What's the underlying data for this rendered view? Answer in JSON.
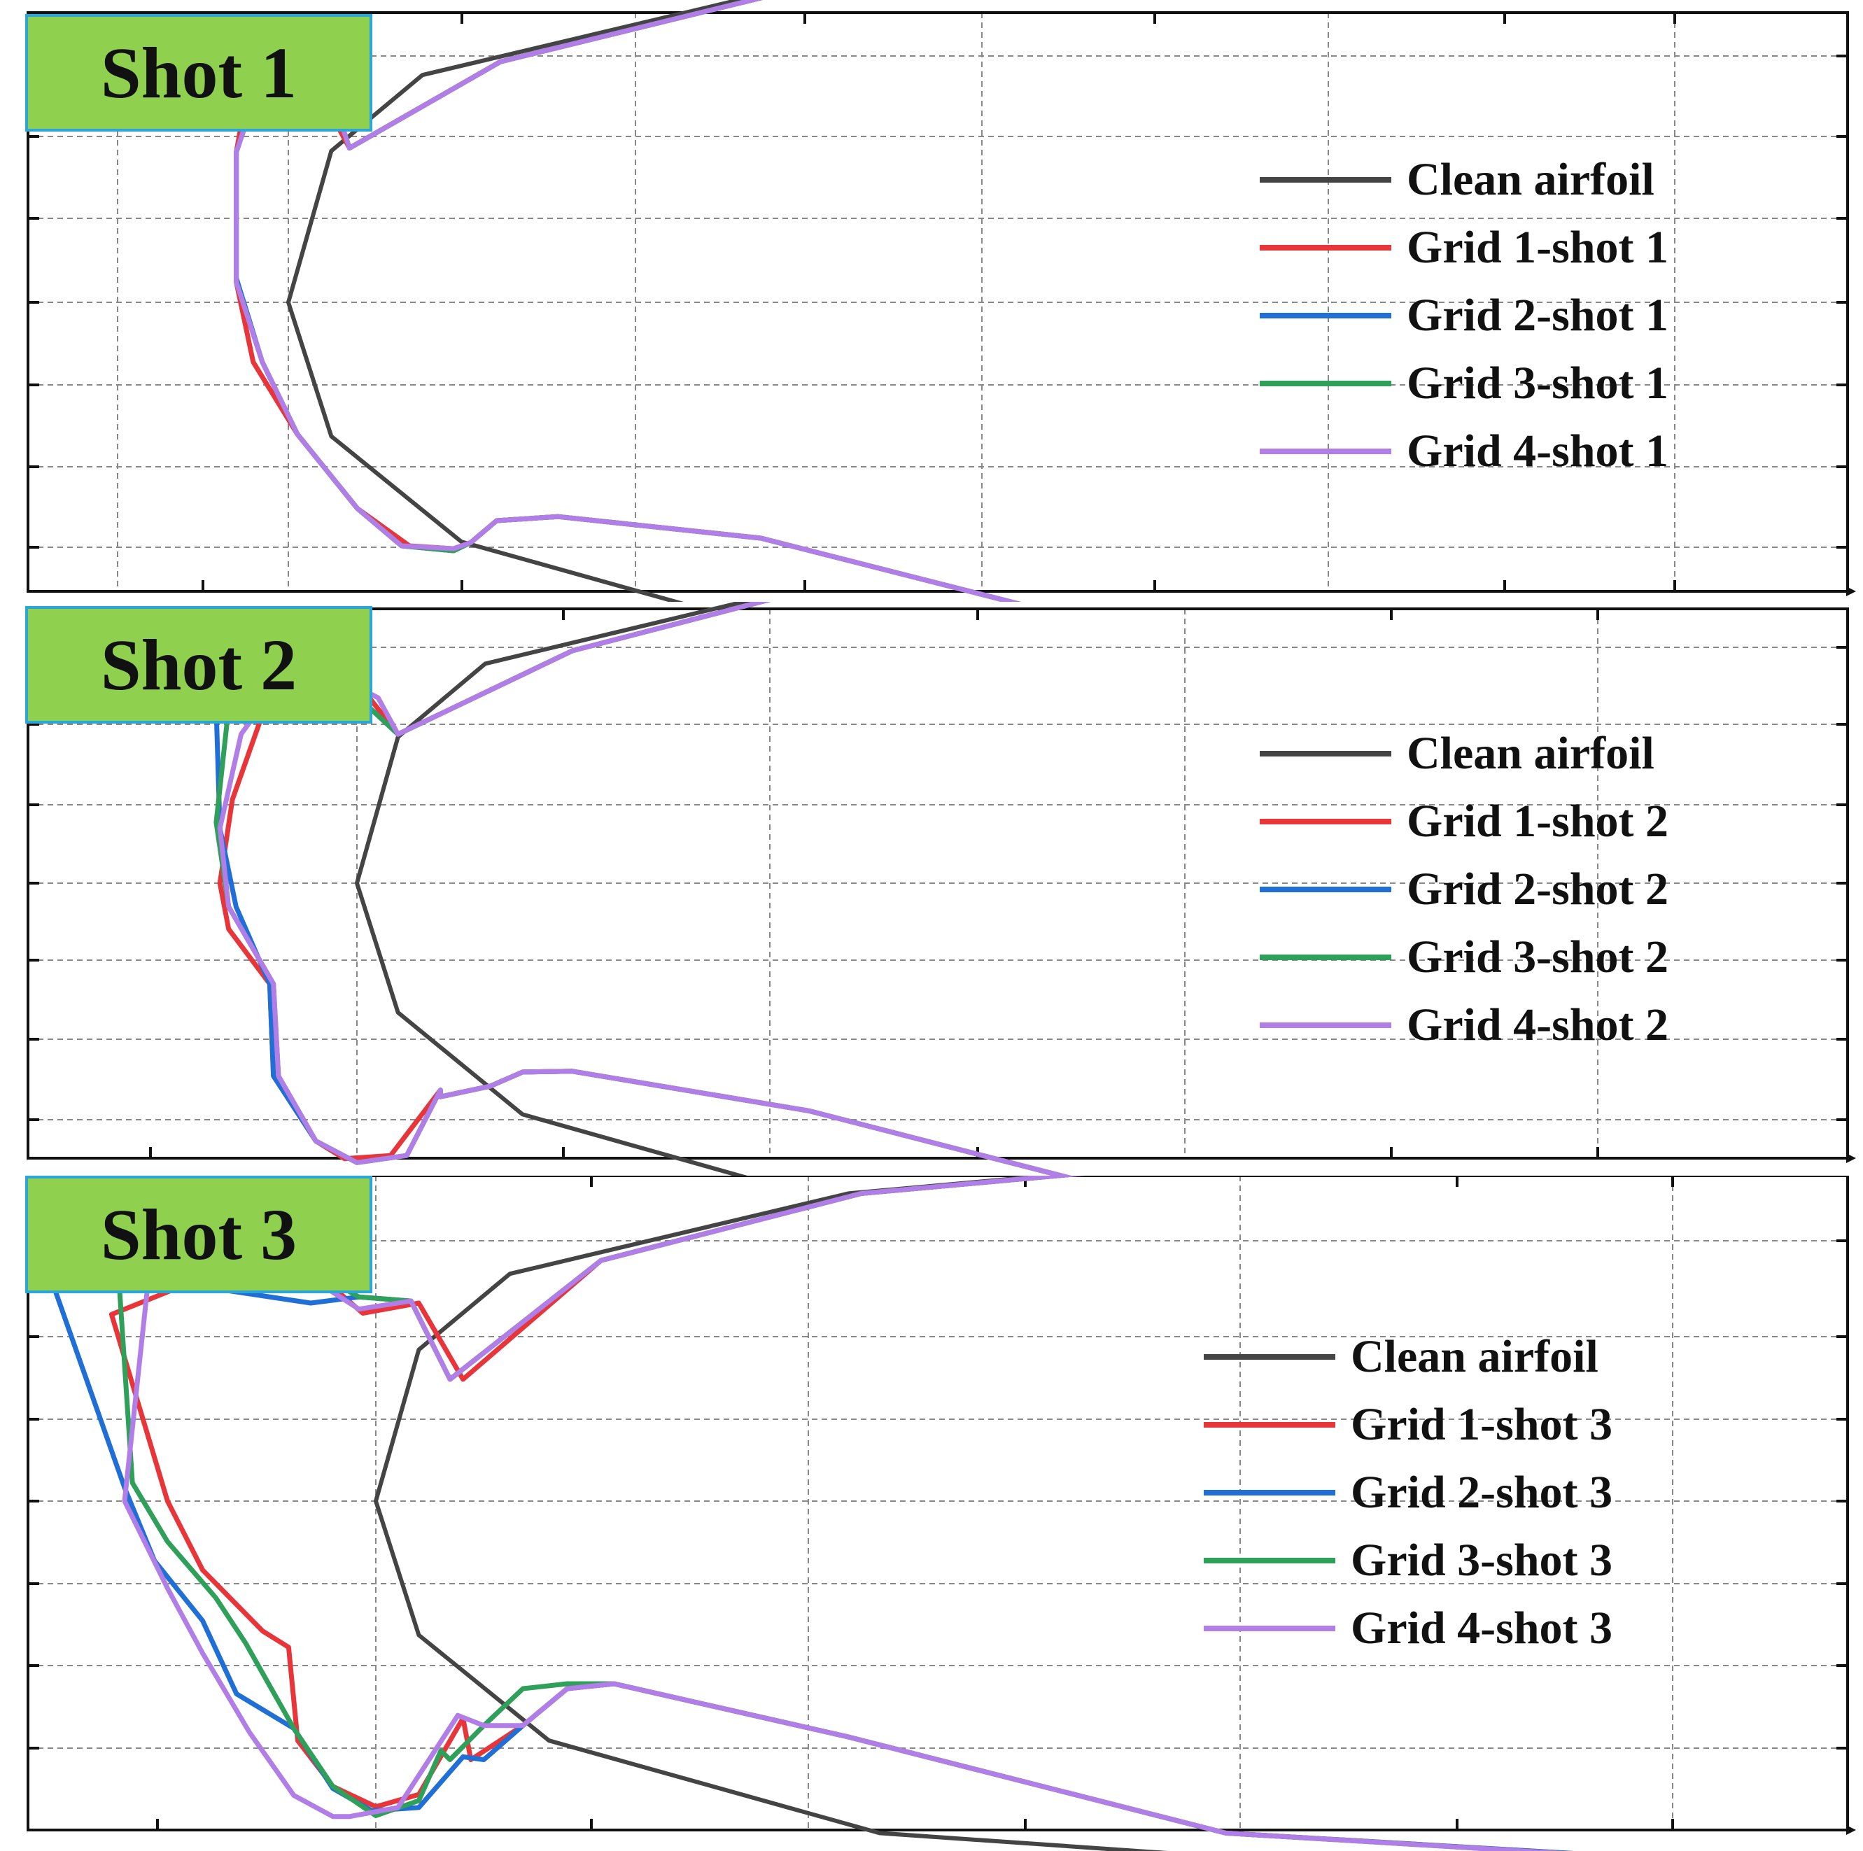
{
  "colors": {
    "clean": "#444444",
    "grid1": "#e8353a",
    "grid2": "#1f6fd6",
    "grid3": "#2fa05a",
    "grid4": "#b07ee6",
    "grid_lines": "#888888",
    "label_bg": "#8fd14f",
    "label_border": "#2aa7d8"
  },
  "chart_data": [
    {
      "type": "line",
      "title": "Shot 1",
      "grid": true,
      "legend": "right",
      "series": [
        {
          "name": "Clean airfoil",
          "color": "#444444",
          "x": [
            98.0,
            66.7,
            36.3,
            10.3,
            3.3,
            0,
            3.3,
            13.3,
            38.7,
            68.8,
            100.0
          ],
          "y": [
            8.58,
            8.45,
            7.58,
            5.6,
            3.73,
            0,
            -3.3,
            -5.9,
            -8.18,
            -8.85,
            -8.88
          ]
        },
        {
          "name": "Grid 1-shot 1",
          "color": "#e8353a",
          "x": [
            101.0,
            67.3,
            37.3,
            16.3,
            4.7,
            2.7,
            -0.7,
            -3.3,
            -4.0,
            -4.0,
            -2.7,
            0.7,
            5.3,
            9.3,
            12.7,
            14.0,
            16.0,
            20.7,
            36.3,
            65.3,
            98.0,
            101.0
          ],
          "y": [
            8.58,
            8.45,
            7.58,
            5.93,
            3.8,
            4.98,
            5.28,
            4.93,
            3.7,
            0.5,
            -1.47,
            -3.25,
            -5.08,
            -6.0,
            -6.07,
            -5.92,
            -5.38,
            -5.28,
            -5.81,
            -8.18,
            -8.85,
            -8.88
          ]
        },
        {
          "name": "Grid 2-shot 1",
          "color": "#1f6fd6",
          "x": [
            100.0,
            67.3,
            37.3,
            16.3,
            4.7,
            3.3,
            0,
            -2.7,
            -4.0,
            -4.0,
            -2.0,
            0.7,
            5.3,
            8.7,
            12.7,
            14.0,
            16.0,
            20.7,
            36.3,
            65.3,
            98.0,
            101.0
          ],
          "y": [
            8.58,
            8.45,
            7.58,
            5.93,
            3.8,
            5.13,
            5.2,
            4.93,
            3.7,
            0.6,
            -1.47,
            -3.25,
            -5.08,
            -6.0,
            -6.12,
            -5.92,
            -5.38,
            -5.28,
            -5.81,
            -8.18,
            -8.85,
            -8.88
          ]
        },
        {
          "name": "Grid 3-shot 1",
          "color": "#2fa05a",
          "x": [
            100.0,
            67.3,
            37.3,
            16.3,
            4.7,
            3.3,
            0,
            -2.7,
            -4.0,
            -4.0,
            -2.0,
            0.7,
            5.3,
            8.7,
            12.7,
            14.0,
            16.0,
            20.7,
            36.3,
            65.3,
            98.0,
            100.0
          ],
          "y": [
            8.58,
            8.45,
            7.58,
            5.93,
            3.8,
            5.13,
            5.2,
            4.93,
            3.7,
            0.5,
            -1.47,
            -3.25,
            -5.08,
            -6.0,
            -6.12,
            -5.92,
            -5.38,
            -5.28,
            -5.81,
            -8.18,
            -8.85,
            -8.88
          ]
        },
        {
          "name": "Grid 4-shot 1",
          "color": "#b07ee6",
          "x": [
            100.0,
            67.3,
            37.3,
            16.3,
            4.7,
            3.3,
            0,
            -2.7,
            -4.0,
            -4.0,
            -2.0,
            0.7,
            5.3,
            8.7,
            12.7,
            14.0,
            16.0,
            20.7,
            36.3,
            65.3,
            98.0
          ],
          "y": [
            8.58,
            8.45,
            7.58,
            5.93,
            3.8,
            5.13,
            5.2,
            4.93,
            3.7,
            0.5,
            -1.47,
            -3.25,
            -5.08,
            -6.0,
            -6.07,
            -5.92,
            -5.38,
            -5.28,
            -5.81,
            -8.18,
            -8.85
          ]
        }
      ]
    },
    {
      "type": "line",
      "title": "Shot 2",
      "grid": true,
      "legend": "right",
      "series": [
        {
          "name": "Clean airfoil",
          "color": "#444444",
          "x": [
            98.0,
            66.7,
            36.3,
            10.3,
            3.3,
            0,
            3.3,
            13.3,
            38.7,
            68.8,
            100.0
          ],
          "y": [
            8.58,
            8.45,
            7.58,
            5.6,
            3.73,
            0,
            -3.3,
            -5.9,
            -8.18,
            -8.85,
            -8.88
          ]
        },
        {
          "name": "Grid 1-shot 2",
          "color": "#e8353a",
          "x": [
            100.0,
            67.3,
            37.3,
            17.3,
            3.3,
            1.0,
            -3.3,
            -7.7,
            -10.0,
            -11.0,
            -10.3,
            -7.0,
            -6.7,
            -3.3,
            -1.0,
            2.7,
            6.7,
            6.7,
            10.7,
            13.3,
            17.3,
            36.3,
            65.3,
            98.0,
            101.0
          ],
          "y": [
            8.58,
            8.45,
            7.58,
            5.93,
            3.8,
            4.73,
            5.18,
            4.2,
            2.13,
            0,
            -1.17,
            -2.57,
            -4.92,
            -6.58,
            -7.03,
            -6.95,
            -5.28,
            -5.45,
            -5.18,
            -4.82,
            -4.8,
            -5.81,
            -8.18,
            -8.85,
            -8.88
          ]
        },
        {
          "name": "Grid 2-shot 2",
          "color": "#1f6fd6",
          "x": [
            102.0,
            67.3,
            37.3,
            17.3,
            3.3,
            1.0,
            -3.3,
            -7.7,
            -11.3,
            -11.0,
            -9.7,
            -7.0,
            -6.7,
            -3.3,
            0,
            4.0,
            6.7,
            6.7,
            10.7,
            13.3,
            17.3,
            36.3,
            65.3,
            98.0,
            103.0
          ],
          "y": [
            8.58,
            8.45,
            7.58,
            5.93,
            3.8,
            4.48,
            4.73,
            5.0,
            4.48,
            1.4,
            -0.6,
            -2.57,
            -4.92,
            -6.58,
            -7.13,
            -6.95,
            -5.28,
            -5.45,
            -5.18,
            -4.82,
            -4.8,
            -5.81,
            -8.18,
            -8.85,
            -8.88
          ]
        },
        {
          "name": "Grid 3-shot 2",
          "color": "#2fa05a",
          "x": [
            100.0,
            67.3,
            37.3,
            17.3,
            3.3,
            1.0,
            -3.3,
            -7.7,
            -10.0,
            -11.3,
            -10.3,
            -6.7,
            -6.3,
            -3.3,
            0,
            4.0,
            6.7,
            6.7,
            10.7,
            13.3,
            17.3,
            36.3,
            65.3,
            98.0
          ],
          "y": [
            8.58,
            8.45,
            7.58,
            5.93,
            3.8,
            4.48,
            4.73,
            5.0,
            5.35,
            1.55,
            -0.6,
            -2.57,
            -4.92,
            -6.58,
            -7.13,
            -6.95,
            -5.28,
            -5.45,
            -5.18,
            -4.82,
            -4.8,
            -5.81,
            -8.18,
            -8.85
          ]
        },
        {
          "name": "Grid 4-shot 2",
          "color": "#b07ee6",
          "x": [
            100.0,
            67.3,
            37.3,
            17.3,
            3.3,
            1.7,
            -2.3,
            -6.3,
            -9.3,
            -11.0,
            -10.3,
            -6.7,
            -6.3,
            -3.3,
            0,
            4.0,
            6.7,
            6.7,
            10.7,
            13.3,
            17.3,
            36.3,
            65.3,
            98.0
          ],
          "y": [
            8.58,
            8.45,
            7.58,
            5.93,
            3.8,
            4.73,
            5.38,
            5.13,
            3.8,
            1.4,
            -0.6,
            -2.57,
            -4.92,
            -6.58,
            -7.13,
            -6.95,
            -5.28,
            -5.45,
            -5.18,
            -4.82,
            -4.8,
            -5.81,
            -8.18,
            -8.85
          ]
        }
      ]
    },
    {
      "type": "line",
      "title": "Shot 3",
      "grid": true,
      "legend": "right",
      "series": [
        {
          "name": "Clean airfoil",
          "color": "#444444",
          "x": [
            98.0,
            66.7,
            36.3,
            10.3,
            3.3,
            0,
            3.3,
            13.3,
            38.7,
            68.8,
            100.0
          ],
          "y": [
            8.58,
            8.45,
            7.58,
            5.6,
            3.73,
            0,
            -3.3,
            -5.9,
            -8.18,
            -8.85,
            -8.88
          ]
        },
        {
          "name": "Grid 1-shot 3",
          "color": "#e8353a",
          "x": [
            102.0,
            67.3,
            37.3,
            17.3,
            6.7,
            3.3,
            -1.0,
            -3.7,
            -7.0,
            -13.3,
            -20.3,
            -16.0,
            -13.3,
            -8.7,
            -6.7,
            -6.0,
            -3.3,
            0,
            3.3,
            6.7,
            7.3,
            11.3,
            14.7,
            18.3,
            36.3,
            65.3,
            101.0,
            106.0
          ],
          "y": [
            8.58,
            8.45,
            7.58,
            5.93,
            3.0,
            4.88,
            4.63,
            5.38,
            6.15,
            5.5,
            4.6,
            0,
            -1.7,
            -3.2,
            -3.6,
            -5.9,
            -7.03,
            -7.53,
            -7.23,
            -5.35,
            -6.37,
            -5.53,
            -4.62,
            -4.5,
            -5.81,
            -8.18,
            -8.85,
            -8.88
          ]
        },
        {
          "name": "Grid 2-shot 3",
          "color": "#1f6fd6",
          "x": [
            103.0,
            67.3,
            37.3,
            17.3,
            5.7,
            2.7,
            -1.3,
            -5.0,
            -12.7,
            -24.7,
            -19.3,
            -17.0,
            -13.3,
            -10.7,
            -6.3,
            -3.3,
            -0.3,
            3.3,
            6.7,
            8.3,
            11.3,
            14.7,
            18.3,
            36.3,
            65.3,
            101.0,
            108.0
          ],
          "y": [
            8.58,
            8.45,
            7.58,
            5.93,
            3.0,
            4.93,
            5.03,
            4.88,
            5.25,
            5.25,
            0.33,
            -1.47,
            -2.95,
            -4.75,
            -5.6,
            -7.08,
            -7.63,
            -7.55,
            -6.3,
            -6.37,
            -5.53,
            -4.62,
            -4.5,
            -5.81,
            -8.18,
            -8.85,
            -8.88
          ]
        },
        {
          "name": "Grid 3-shot 3",
          "color": "#2fa05a",
          "x": [
            100.0,
            67.3,
            37.3,
            17.3,
            5.7,
            2.7,
            -1.3,
            -5.0,
            -12.7,
            -20.0,
            -18.7,
            -16.0,
            -12.3,
            -10.0,
            -6.3,
            -3.3,
            0,
            3.3,
            5.0,
            5.7,
            8.3,
            11.3,
            14.7,
            18.3,
            36.3,
            65.3,
            100.0
          ],
          "y": [
            8.58,
            8.45,
            7.58,
            5.93,
            3.0,
            4.93,
            5.03,
            5.7,
            6.2,
            6.73,
            0.45,
            -1.0,
            -2.38,
            -3.5,
            -5.6,
            -7.03,
            -7.75,
            -7.38,
            -6.15,
            -6.37,
            -5.53,
            -4.62,
            -4.5,
            -4.5,
            -5.81,
            -8.18,
            -8.85
          ]
        },
        {
          "name": "Grid 4-shot 3",
          "color": "#b07ee6",
          "x": [
            100.0,
            67.3,
            37.3,
            17.3,
            5.7,
            2.7,
            -1.3,
            -3.7,
            -6.3,
            -10.3,
            -14.7,
            -17.0,
            -19.3,
            -16.0,
            -13.3,
            -9.7,
            -6.3,
            -3.3,
            -2.0,
            1.7,
            6.3,
            8.3,
            11.3,
            14.7,
            18.3,
            36.3,
            65.3,
            100.0
          ],
          "y": [
            8.58,
            8.45,
            7.58,
            5.93,
            3.0,
            4.93,
            4.73,
            5.23,
            5.53,
            6.0,
            5.68,
            6.87,
            0,
            -2.15,
            -3.75,
            -5.7,
            -7.25,
            -7.77,
            -7.77,
            -7.55,
            -5.28,
            -5.53,
            -5.53,
            -4.62,
            -4.5,
            -5.81,
            -8.18,
            -8.85
          ]
        }
      ]
    }
  ],
  "panels": [
    {
      "label": "Shot 1",
      "legend": [
        "Clean airfoil",
        "Grid 1-shot 1",
        "Grid 2-shot 1",
        "Grid 3-shot 1",
        "Grid 4-shot 1"
      ]
    },
    {
      "label": "Shot 2",
      "legend": [
        "Clean airfoil",
        "Grid 1-shot 2",
        "Grid 2-shot 2",
        "Grid 3-shot 2",
        "Grid 4-shot 2"
      ]
    },
    {
      "label": "Shot 3",
      "legend": [
        "Clean airfoil",
        "Grid 1-shot 3",
        "Grid 2-shot 3",
        "Grid 3-shot 3",
        "Grid 4-shot 3"
      ]
    }
  ]
}
